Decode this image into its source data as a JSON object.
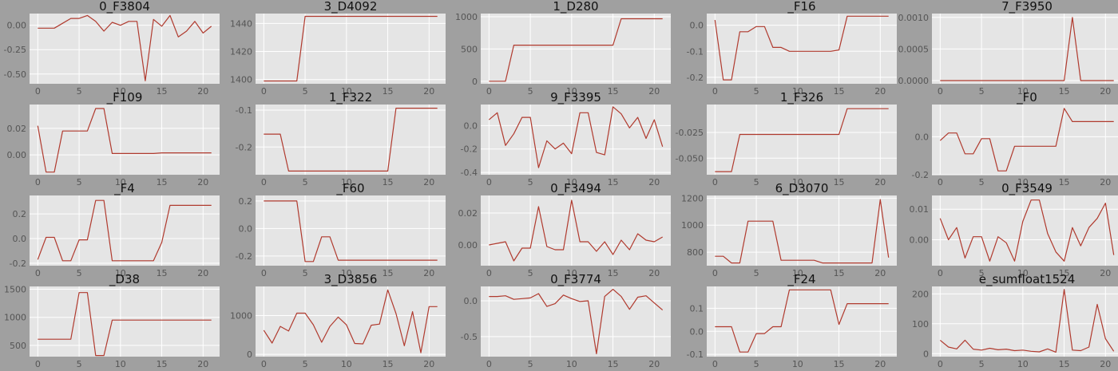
{
  "colors": {
    "figure_bg": "#a0a0a0",
    "plot_bg": "#e5e5e5",
    "grid": "#ffffff",
    "line": "#b03a2e"
  },
  "chart_data": [
    {
      "type": "line",
      "title": "0_F3804",
      "x": [
        0,
        1,
        2,
        3,
        4,
        5,
        6,
        7,
        8,
        9,
        10,
        11,
        12,
        13,
        14,
        15,
        16,
        17,
        18,
        19,
        20,
        21
      ],
      "xticks": [
        0,
        5,
        10,
        15,
        20
      ],
      "xlim": [
        -1,
        22
      ],
      "yticks": [
        "0.00",
        "-0.25",
        "-0.50"
      ],
      "ytick_values": [
        0,
        -0.25,
        -0.5
      ],
      "ylim": [
        -0.6,
        0.12
      ],
      "values": [
        -0.03,
        -0.03,
        -0.03,
        0.02,
        0.07,
        0.07,
        0.1,
        0.04,
        -0.06,
        0.03,
        0.0,
        0.04,
        0.04,
        -0.57,
        0.06,
        -0.01,
        0.1,
        -0.12,
        -0.06,
        0.04,
        -0.08,
        -0.01
      ]
    },
    {
      "type": "line",
      "title": "3_D4092",
      "x": [
        0,
        1,
        2,
        3,
        4,
        5,
        6,
        7,
        8,
        9,
        10,
        11,
        12,
        13,
        14,
        15,
        16,
        17,
        18,
        19,
        20,
        21
      ],
      "xticks": [
        0,
        5,
        10,
        15,
        20
      ],
      "xlim": [
        -1,
        22
      ],
      "yticks": [
        "1440",
        "1420",
        "1400"
      ],
      "ytick_values": [
        1440,
        1420,
        1400
      ],
      "ylim": [
        1397,
        1447
      ],
      "values": [
        1399,
        1399,
        1399,
        1399,
        1399,
        1445,
        1445,
        1445,
        1445,
        1445,
        1445,
        1445,
        1445,
        1445,
        1445,
        1445,
        1445,
        1445,
        1445,
        1445,
        1445,
        1445
      ]
    },
    {
      "type": "line",
      "title": "1_D280",
      "x": [
        0,
        1,
        2,
        3,
        4,
        5,
        6,
        7,
        8,
        9,
        10,
        11,
        12,
        13,
        14,
        15,
        16,
        17,
        18,
        19,
        20,
        21
      ],
      "xticks": [
        0,
        5,
        10,
        15,
        20
      ],
      "xlim": [
        -1,
        22
      ],
      "yticks": [
        "1000",
        "500",
        "0"
      ],
      "ytick_values": [
        1000,
        500,
        0
      ],
      "ylim": [
        -40,
        1050
      ],
      "values": [
        0,
        0,
        0,
        560,
        560,
        560,
        560,
        560,
        560,
        560,
        560,
        560,
        560,
        560,
        560,
        560,
        970,
        970,
        970,
        970,
        970,
        970
      ]
    },
    {
      "type": "line",
      "title": "_F16",
      "x": [
        0,
        1,
        2,
        3,
        4,
        5,
        6,
        7,
        8,
        9,
        10,
        11,
        12,
        13,
        14,
        15,
        16,
        17,
        18,
        19,
        20,
        21
      ],
      "xticks": [
        0,
        5,
        10,
        15,
        20
      ],
      "xlim": [
        -1,
        22
      ],
      "yticks": [
        "0.0",
        "-0.1",
        "-0.2"
      ],
      "ytick_values": [
        0,
        -0.1,
        -0.2
      ],
      "ylim": [
        -0.225,
        0.045
      ],
      "values": [
        0.02,
        -0.21,
        -0.21,
        -0.025,
        -0.025,
        -0.005,
        -0.005,
        -0.085,
        -0.085,
        -0.1,
        -0.1,
        -0.1,
        -0.1,
        -0.1,
        -0.1,
        -0.095,
        0.035,
        0.035,
        0.035,
        0.035,
        0.035,
        0.035
      ]
    },
    {
      "type": "line",
      "title": "7_F3950",
      "x": [
        0,
        1,
        2,
        3,
        4,
        5,
        6,
        7,
        8,
        9,
        10,
        11,
        12,
        13,
        14,
        15,
        16,
        17,
        18,
        19,
        20,
        21
      ],
      "xticks": [
        0,
        5,
        10,
        15,
        20
      ],
      "xlim": [
        -1,
        22
      ],
      "yticks": [
        "0.0010",
        "0.0005",
        "0.0000"
      ],
      "ytick_values": [
        0.001,
        0.0005,
        0
      ],
      "ylim": [
        -5e-05,
        0.00106
      ],
      "values": [
        0,
        0,
        0,
        0,
        0,
        0,
        0,
        0,
        0,
        0,
        0,
        0,
        0,
        0,
        0,
        0,
        0.001,
        0,
        0,
        0,
        0,
        0
      ]
    },
    {
      "type": "line",
      "title": "_F109",
      "x": [
        0,
        1,
        2,
        3,
        4,
        5,
        6,
        7,
        8,
        9,
        10,
        11,
        12,
        13,
        14,
        15,
        16,
        17,
        18,
        19,
        20,
        21
      ],
      "xticks": [
        0,
        5,
        10,
        15,
        20
      ],
      "xlim": [
        -1,
        22
      ],
      "yticks": [
        "0.02",
        "0.00"
      ],
      "ytick_values": [
        0.02,
        0
      ],
      "ylim": [
        -0.015,
        0.038
      ],
      "values": [
        0.022,
        -0.013,
        -0.013,
        0.018,
        0.018,
        0.018,
        0.018,
        0.035,
        0.035,
        0.001,
        0.001,
        0.001,
        0.001,
        0.001,
        0.001,
        0.0015,
        0.0015,
        0.0015,
        0.0015,
        0.0015,
        0.0015,
        0.0015
      ]
    },
    {
      "type": "line",
      "title": "1_F322",
      "x": [
        0,
        1,
        2,
        3,
        4,
        5,
        6,
        7,
        8,
        9,
        10,
        11,
        12,
        13,
        14,
        15,
        16,
        17,
        18,
        19,
        20,
        21
      ],
      "xticks": [
        0,
        5,
        10,
        15,
        20
      ],
      "xlim": [
        -1,
        22
      ],
      "yticks": [
        "-0.1",
        "-0.2"
      ],
      "ytick_values": [
        -0.1,
        -0.2
      ],
      "ylim": [
        -0.275,
        -0.085
      ],
      "values": [
        -0.165,
        -0.165,
        -0.165,
        -0.265,
        -0.265,
        -0.265,
        -0.265,
        -0.265,
        -0.265,
        -0.265,
        -0.265,
        -0.265,
        -0.265,
        -0.265,
        -0.265,
        -0.265,
        -0.095,
        -0.095,
        -0.095,
        -0.095,
        -0.095,
        -0.095
      ]
    },
    {
      "type": "line",
      "title": "9_F3395",
      "x": [
        0,
        1,
        2,
        3,
        4,
        5,
        6,
        7,
        8,
        9,
        10,
        11,
        12,
        13,
        14,
        15,
        16,
        17,
        18,
        19,
        20,
        21
      ],
      "xticks": [
        0,
        5,
        10,
        15,
        20
      ],
      "xlim": [
        -1,
        22
      ],
      "yticks": [
        "0.0",
        "-0.2",
        "-0.4"
      ],
      "ytick_values": [
        0,
        -0.2,
        -0.4
      ],
      "ylim": [
        -0.42,
        0.18
      ],
      "values": [
        0.05,
        0.11,
        -0.17,
        -0.07,
        0.07,
        0.07,
        -0.36,
        -0.13,
        -0.2,
        -0.15,
        -0.24,
        0.11,
        0.11,
        -0.23,
        -0.25,
        0.16,
        0.1,
        -0.02,
        0.07,
        -0.11,
        0.05,
        -0.18
      ]
    },
    {
      "type": "line",
      "title": "1_F326",
      "x": [
        0,
        1,
        2,
        3,
        4,
        5,
        6,
        7,
        8,
        9,
        10,
        11,
        12,
        13,
        14,
        15,
        16,
        17,
        18,
        19,
        20,
        21
      ],
      "xticks": [
        0,
        5,
        10,
        15,
        20
      ],
      "xlim": [
        -1,
        22
      ],
      "yticks": [
        "-0.025",
        "-0.050"
      ],
      "ytick_values": [
        -0.025,
        -0.05
      ],
      "ylim": [
        -0.066,
        0.002
      ],
      "values": [
        -0.063,
        -0.063,
        -0.063,
        -0.027,
        -0.027,
        -0.027,
        -0.027,
        -0.027,
        -0.027,
        -0.027,
        -0.027,
        -0.027,
        -0.027,
        -0.027,
        -0.027,
        -0.027,
        -0.002,
        -0.002,
        -0.002,
        -0.002,
        -0.002,
        -0.002
      ]
    },
    {
      "type": "line",
      "title": "_F0",
      "x": [
        0,
        1,
        2,
        3,
        4,
        5,
        6,
        7,
        8,
        9,
        10,
        11,
        12,
        13,
        14,
        15,
        16,
        17,
        18,
        19,
        20,
        21
      ],
      "xticks": [
        0,
        5,
        10,
        15,
        20
      ],
      "xlim": [
        -1,
        22
      ],
      "yticks": [
        "0.0",
        "-0.2"
      ],
      "ytick_values": [
        0,
        -0.2
      ],
      "ylim": [
        -0.2,
        0.17
      ],
      "values": [
        -0.02,
        0.02,
        0.02,
        -0.09,
        -0.09,
        -0.01,
        -0.01,
        -0.18,
        -0.18,
        -0.05,
        -0.05,
        -0.05,
        -0.05,
        -0.05,
        -0.05,
        0.15,
        0.08,
        0.08,
        0.08,
        0.08,
        0.08,
        0.08
      ]
    },
    {
      "type": "line",
      "title": "_F4",
      "x": [
        0,
        1,
        2,
        3,
        4,
        5,
        6,
        7,
        8,
        9,
        10,
        11,
        12,
        13,
        14,
        15,
        16,
        17,
        18,
        19,
        20,
        21
      ],
      "xticks": [
        0,
        5,
        10,
        15,
        20
      ],
      "xlim": [
        -1,
        22
      ],
      "yticks": [
        "0.2",
        "0.0",
        "-0.2"
      ],
      "ytick_values": [
        0.2,
        0,
        -0.2
      ],
      "ylim": [
        -0.22,
        0.35
      ],
      "values": [
        -0.17,
        0.01,
        0.01,
        -0.18,
        -0.18,
        -0.01,
        -0.01,
        0.31,
        0.31,
        -0.18,
        -0.18,
        -0.18,
        -0.18,
        -0.18,
        -0.18,
        -0.03,
        0.27,
        0.27,
        0.27,
        0.27,
        0.27,
        0.27
      ]
    },
    {
      "type": "line",
      "title": "_F60",
      "x": [
        0,
        1,
        2,
        3,
        4,
        5,
        6,
        7,
        8,
        9,
        10,
        11,
        12,
        13,
        14,
        15,
        16,
        17,
        18,
        19,
        20,
        21
      ],
      "xticks": [
        0,
        5,
        10,
        15,
        20
      ],
      "xlim": [
        -1,
        22
      ],
      "yticks": [
        "0.2",
        "0.0",
        "-0.2"
      ],
      "ytick_values": [
        0.2,
        0,
        -0.2
      ],
      "ylim": [
        -0.27,
        0.24
      ],
      "values": [
        0.2,
        0.2,
        0.2,
        0.2,
        0.2,
        -0.24,
        -0.24,
        -0.06,
        -0.06,
        -0.23,
        -0.23,
        -0.23,
        -0.23,
        -0.23,
        -0.23,
        -0.23,
        -0.23,
        -0.23,
        -0.23,
        -0.23,
        -0.23,
        -0.23
      ]
    },
    {
      "type": "line",
      "title": "0_F3494",
      "x": [
        0,
        1,
        2,
        3,
        4,
        5,
        6,
        7,
        8,
        9,
        10,
        11,
        12,
        13,
        14,
        15,
        16,
        17,
        18,
        19,
        20,
        21
      ],
      "xticks": [
        0,
        5,
        10,
        15,
        20
      ],
      "xlim": [
        -1,
        22
      ],
      "yticks": [
        "0.02",
        "0.00"
      ],
      "ytick_values": [
        0.02,
        0
      ],
      "ylim": [
        -0.013,
        0.031
      ],
      "values": [
        0.0,
        0.001,
        0.002,
        -0.01,
        -0.002,
        -0.002,
        0.024,
        -0.001,
        -0.003,
        -0.003,
        0.028,
        0.002,
        0.002,
        -0.004,
        0.002,
        -0.006,
        0.003,
        -0.003,
        0.007,
        0.003,
        0.002,
        0.005
      ]
    },
    {
      "type": "line",
      "title": "6_D3070",
      "x": [
        0,
        1,
        2,
        3,
        4,
        5,
        6,
        7,
        8,
        9,
        10,
        11,
        12,
        13,
        14,
        15,
        16,
        17,
        18,
        19,
        20,
        21
      ],
      "xticks": [
        0,
        5,
        10,
        15,
        20
      ],
      "xlim": [
        -1,
        22
      ],
      "yticks": [
        "1200",
        "1000",
        "800"
      ],
      "ytick_values": [
        1200,
        1000,
        800
      ],
      "ylim": [
        700,
        1220
      ],
      "values": [
        770,
        770,
        720,
        720,
        1030,
        1030,
        1030,
        1030,
        740,
        740,
        740,
        740,
        740,
        720,
        720,
        720,
        720,
        720,
        720,
        720,
        1190,
        760
      ]
    },
    {
      "type": "line",
      "title": "0_F3549",
      "x": [
        0,
        1,
        2,
        3,
        4,
        5,
        6,
        7,
        8,
        9,
        10,
        11,
        12,
        13,
        14,
        15,
        16,
        17,
        18,
        19,
        20,
        21
      ],
      "xticks": [
        0,
        5,
        10,
        15,
        20
      ],
      "xlim": [
        -1,
        22
      ],
      "yticks": [
        "0.01",
        "0.00"
      ],
      "ytick_values": [
        0.01,
        0
      ],
      "ylim": [
        -0.0085,
        0.0145
      ],
      "values": [
        0.007,
        0.0,
        0.004,
        -0.006,
        0.001,
        0.001,
        -0.007,
        0.001,
        -0.001,
        -0.007,
        0.006,
        0.013,
        0.013,
        0.002,
        -0.004,
        -0.007,
        0.004,
        -0.002,
        0.004,
        0.007,
        0.012,
        -0.005
      ]
    },
    {
      "type": "line",
      "title": "_D38",
      "x": [
        0,
        1,
        2,
        3,
        4,
        5,
        6,
        7,
        8,
        9,
        10,
        11,
        12,
        13,
        14,
        15,
        16,
        17,
        18,
        19,
        20,
        21
      ],
      "xticks": [
        0,
        5,
        10,
        15,
        20
      ],
      "xlim": [
        -1,
        22
      ],
      "yticks": [
        "1500",
        "1000",
        "500"
      ],
      "ytick_values": [
        1500,
        1000,
        500
      ],
      "ylim": [
        300,
        1550
      ],
      "values": [
        610,
        610,
        610,
        610,
        610,
        1440,
        1440,
        320,
        320,
        950,
        950,
        950,
        950,
        950,
        950,
        950,
        950,
        950,
        950,
        950,
        950,
        950
      ]
    },
    {
      "type": "line",
      "title": "3_D3856",
      "x": [
        0,
        1,
        2,
        3,
        4,
        5,
        6,
        7,
        8,
        9,
        10,
        11,
        12,
        13,
        14,
        15,
        16,
        17,
        18,
        19,
        20,
        21
      ],
      "xticks": [
        0,
        5,
        10,
        15,
        20
      ],
      "xlim": [
        -1,
        22
      ],
      "yticks": [
        "1000",
        "0"
      ],
      "ytick_values": [
        1000,
        0
      ],
      "ylim": [
        -60,
        1750
      ],
      "values": [
        620,
        290,
        720,
        600,
        1060,
        1060,
        760,
        310,
        720,
        960,
        760,
        280,
        270,
        750,
        780,
        1660,
        1050,
        220,
        1100,
        40,
        1230,
        1230
      ]
    },
    {
      "type": "line",
      "title": "0_F3774",
      "x": [
        0,
        1,
        2,
        3,
        4,
        5,
        6,
        7,
        8,
        9,
        10,
        11,
        12,
        13,
        14,
        15,
        16,
        17,
        18,
        19,
        20,
        21
      ],
      "xticks": [
        0,
        5,
        10,
        15,
        20
      ],
      "xlim": [
        -1,
        22
      ],
      "yticks": [
        "0.0",
        "-0.5"
      ],
      "ytick_values": [
        0,
        -0.5
      ],
      "ylim": [
        -0.78,
        0.2
      ],
      "values": [
        0.06,
        0.06,
        0.07,
        0.02,
        0.03,
        0.04,
        0.1,
        -0.08,
        -0.04,
        0.08,
        0.03,
        -0.01,
        0.0,
        -0.74,
        0.06,
        0.16,
        0.06,
        -0.12,
        0.05,
        0.07,
        -0.03,
        -0.13
      ]
    },
    {
      "type": "line",
      "title": "_F24",
      "x": [
        0,
        1,
        2,
        3,
        4,
        5,
        6,
        7,
        8,
        9,
        10,
        11,
        12,
        13,
        14,
        15,
        16,
        17,
        18,
        19,
        20,
        21
      ],
      "xticks": [
        0,
        5,
        10,
        15,
        20
      ],
      "xlim": [
        -1,
        22
      ],
      "yticks": [
        "0.1",
        "0.0",
        "-0.1"
      ],
      "ytick_values": [
        0.1,
        0,
        -0.1
      ],
      "ylim": [
        -0.11,
        0.195
      ],
      "values": [
        0.02,
        0.02,
        0.02,
        -0.09,
        -0.09,
        -0.01,
        -0.01,
        0.02,
        0.02,
        0.18,
        0.18,
        0.18,
        0.18,
        0.18,
        0.18,
        0.03,
        0.12,
        0.12,
        0.12,
        0.12,
        0.12,
        0.12
      ]
    },
    {
      "type": "line",
      "title": "e_sumfloat1524",
      "x": [
        0,
        1,
        2,
        3,
        4,
        5,
        6,
        7,
        8,
        9,
        10,
        11,
        12,
        13,
        14,
        15,
        16,
        17,
        18,
        19,
        20,
        21
      ],
      "xticks": [
        0,
        5,
        10,
        15,
        20
      ],
      "xlim": [
        -1,
        22
      ],
      "yticks": [
        "200",
        "100",
        "0"
      ],
      "ytick_values": [
        200,
        100,
        0
      ],
      "ylim": [
        -10,
        225
      ],
      "values": [
        45,
        22,
        16,
        45,
        15,
        12,
        18,
        13,
        15,
        10,
        12,
        8,
        6,
        16,
        5,
        215,
        12,
        10,
        22,
        165,
        50,
        8
      ]
    }
  ]
}
